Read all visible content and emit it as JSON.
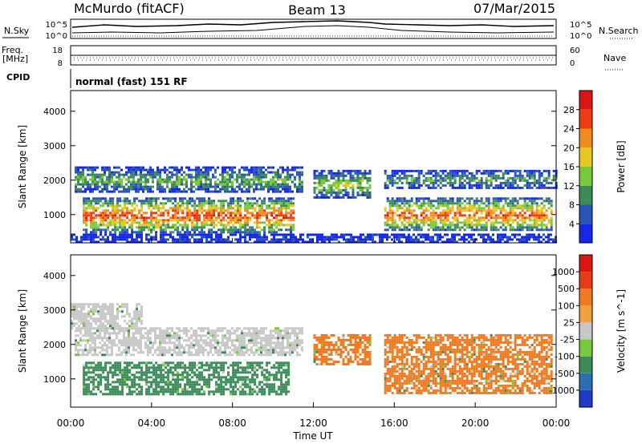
{
  "header": {
    "station": "McMurdo (fitACF)",
    "beam": "Beam 13",
    "date": "07/Mar/2015",
    "nsky_label": "N.Sky",
    "nsearch_label": "N.Search",
    "freq_label_1": "Freq.",
    "freq_label_2": "[MHz]",
    "nave_label": "Nave",
    "cpid_label": "CPID",
    "cpid_text": "normal (fast) 151 RF"
  },
  "noise_panel": {
    "left_ticks": [
      "10^5",
      "10^0"
    ],
    "right_ticks": [
      "10^5",
      "10^0"
    ]
  },
  "freq_panel": {
    "left_ticks": [
      "18",
      "8"
    ],
    "right_ticks": [
      "60",
      "0"
    ]
  },
  "chart_data": [
    {
      "type": "heatmap",
      "name": "power",
      "ylabel": "Slant Range [km]",
      "yticks": [
        "1000",
        "2000",
        "3000",
        "4000"
      ],
      "ylim": [
        180,
        4600
      ],
      "xlim": [
        0,
        24
      ],
      "colorbar_label": "Power [dB]",
      "colorbar_ticks": [
        "4",
        "8",
        "12",
        "16",
        "20",
        "24",
        "28"
      ],
      "colorbar_colors": [
        "#1428e6",
        "#2a55b8",
        "#3c8c5a",
        "#78c83c",
        "#e6c81e",
        "#f08c1e",
        "#eb3c14",
        "#dc1414"
      ],
      "bands": [
        {
          "x": [
            0.6,
            11.0
          ],
          "y": [
            500,
            1500
          ],
          "level": 0.85
        },
        {
          "x": [
            0.2,
            11.5
          ],
          "y": [
            1650,
            2400
          ],
          "level": 0.4
        },
        {
          "x": [
            12.0,
            14.8
          ],
          "y": [
            1500,
            2300
          ],
          "level": 0.5
        },
        {
          "x": [
            15.5,
            23.8
          ],
          "y": [
            550,
            1500
          ],
          "level": 0.8
        },
        {
          "x": [
            15.5,
            24.0
          ],
          "y": [
            1800,
            2300
          ],
          "level": 0.35
        },
        {
          "x": [
            0.0,
            24.0
          ],
          "y": [
            180,
            450
          ],
          "level": 0.1
        }
      ]
    },
    {
      "type": "heatmap",
      "name": "velocity",
      "ylabel": "Slant Range [km]",
      "yticks": [
        "1000",
        "2000",
        "3000",
        "4000"
      ],
      "ylim": [
        180,
        4600
      ],
      "xlim": [
        0,
        24
      ],
      "xticks": [
        "00:00",
        "04:00",
        "08:00",
        "12:00",
        "16:00",
        "20:00",
        "00:00"
      ],
      "xlabel": "Time UT",
      "colorbar_label": "Velocity [m s^-1]",
      "colorbar_ticks": [
        "1000",
        "500",
        "100",
        "25",
        "-25",
        "-100",
        "-500",
        "-1000"
      ],
      "colorbar_colors": [
        "#1e3cc8",
        "#2a6eb4",
        "#3c8c5a",
        "#78c83c",
        "#c8c8c8",
        "#f0a03c",
        "#f0781e",
        "#e63c14",
        "#dc1414"
      ],
      "bands": [
        {
          "x": [
            0.6,
            10.8
          ],
          "y": [
            550,
            1500
          ],
          "color": "#3c8c5a"
        },
        {
          "x": [
            0.2,
            11.5
          ],
          "y": [
            1700,
            2500
          ],
          "color": "#c8c8c8"
        },
        {
          "x": [
            12.0,
            14.8
          ],
          "y": [
            1400,
            2300
          ],
          "color": "#f0781e"
        },
        {
          "x": [
            15.5,
            23.8
          ],
          "y": [
            600,
            2300
          ],
          "color": "#f0781e"
        },
        {
          "x": [
            0.0,
            3.5
          ],
          "y": [
            2500,
            3200
          ],
          "color": "#c8c8c8"
        }
      ]
    }
  ]
}
